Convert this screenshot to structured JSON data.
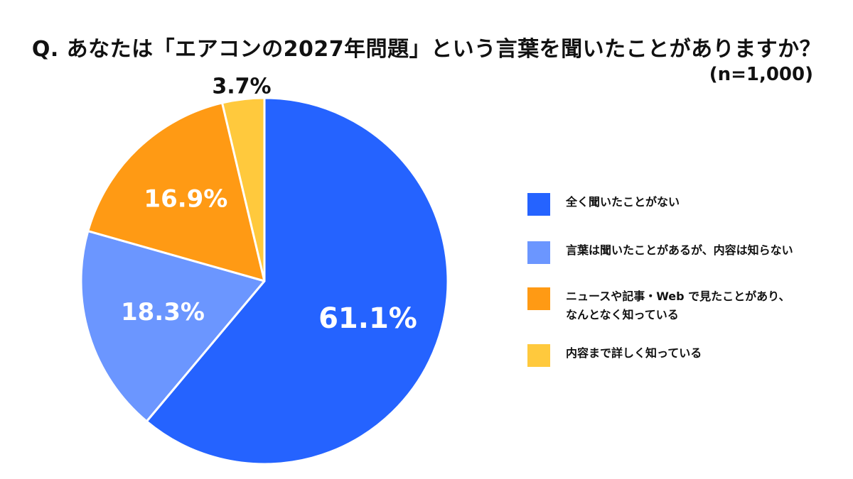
{
  "header": {
    "title": "Q. あなたは「エアコンの2027年問題」という言葉を聞いたことがありますか？",
    "sample_size": "(n=1,000)"
  },
  "chart_data": {
    "type": "pie",
    "title": "Q. あなたは「エアコンの2027年問題」という言葉を聞いたことがありますか？",
    "categories": [
      "全く聞いたことがない",
      "言葉は聞いたことがあるが、内容は知らない",
      "ニュースや記事・Web で見たことがあり、\nなんとなく知っている",
      "内容まで詳しく知っている"
    ],
    "values": [
      61.1,
      18.3,
      16.9,
      3.7
    ],
    "value_labels": [
      "61.1%",
      "18.3%",
      "16.9%",
      "3.7%"
    ],
    "colors": [
      "#2563ff",
      "#6b96ff",
      "#ff9a14",
      "#ffc93d"
    ],
    "start_angle_deg": 0,
    "direction": "clockwise",
    "legend_position": "right"
  }
}
